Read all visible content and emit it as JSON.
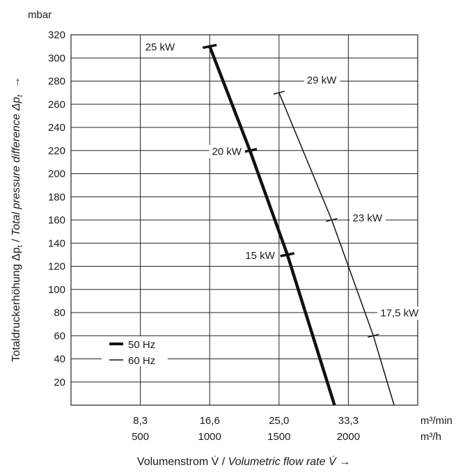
{
  "chart_data": {
    "type": "line",
    "y_unit": "mbar",
    "ylabel_regular": "Totaldruckerhöhung Δp",
    "ylabel_sub_1": "t",
    "ylabel_separator": " / ",
    "ylabel_italic": "Total pressure difference Δp",
    "ylabel_sub_2": "t",
    "ylabel_arrow": "→",
    "xlabel_regular": "Volumenstrom V̇ / ",
    "xlabel_italic": "Volumetric flow rate V̇",
    "xlabel_arrow": " →",
    "ylim": [
      0,
      320
    ],
    "y_ticks": [
      20,
      40,
      60,
      80,
      100,
      120,
      140,
      160,
      180,
      200,
      220,
      240,
      260,
      280,
      300,
      320
    ],
    "xlim_m3h": [
      0,
      2500
    ],
    "x_ticks_m3min": [
      "8,3",
      "16,6",
      "25,0",
      "33,3"
    ],
    "x_ticks_m3h": [
      "500",
      "1000",
      "1500",
      "2000"
    ],
    "x_unit_m3min": "m³/min",
    "x_unit_m3h": "m³/h",
    "grid": true,
    "legend_position": "bottom-left",
    "series": [
      {
        "name": "50 Hz",
        "line_weight": "thick",
        "points_m3h_mbar": [
          [
            1000,
            310
          ],
          [
            1290,
            220
          ],
          [
            1560,
            130
          ],
          [
            1900,
            0
          ]
        ],
        "power_markers": [
          {
            "label": "25 kW",
            "x": 1000,
            "y": 310
          },
          {
            "label": "20 kW",
            "x": 1290,
            "y": 220
          },
          {
            "label": "15 kW",
            "x": 1560,
            "y": 130
          }
        ]
      },
      {
        "name": "60 Hz",
        "line_weight": "thin",
        "points_m3h_mbar": [
          [
            1500,
            270
          ],
          [
            1880,
            160
          ],
          [
            2180,
            60
          ],
          [
            2330,
            0
          ]
        ],
        "power_markers": [
          {
            "label": "29 kW",
            "x": 1500,
            "y": 270
          },
          {
            "label": "23 kW",
            "x": 1880,
            "y": 160
          },
          {
            "label": "17,5 kW",
            "x": 2180,
            "y": 60
          }
        ]
      }
    ]
  }
}
